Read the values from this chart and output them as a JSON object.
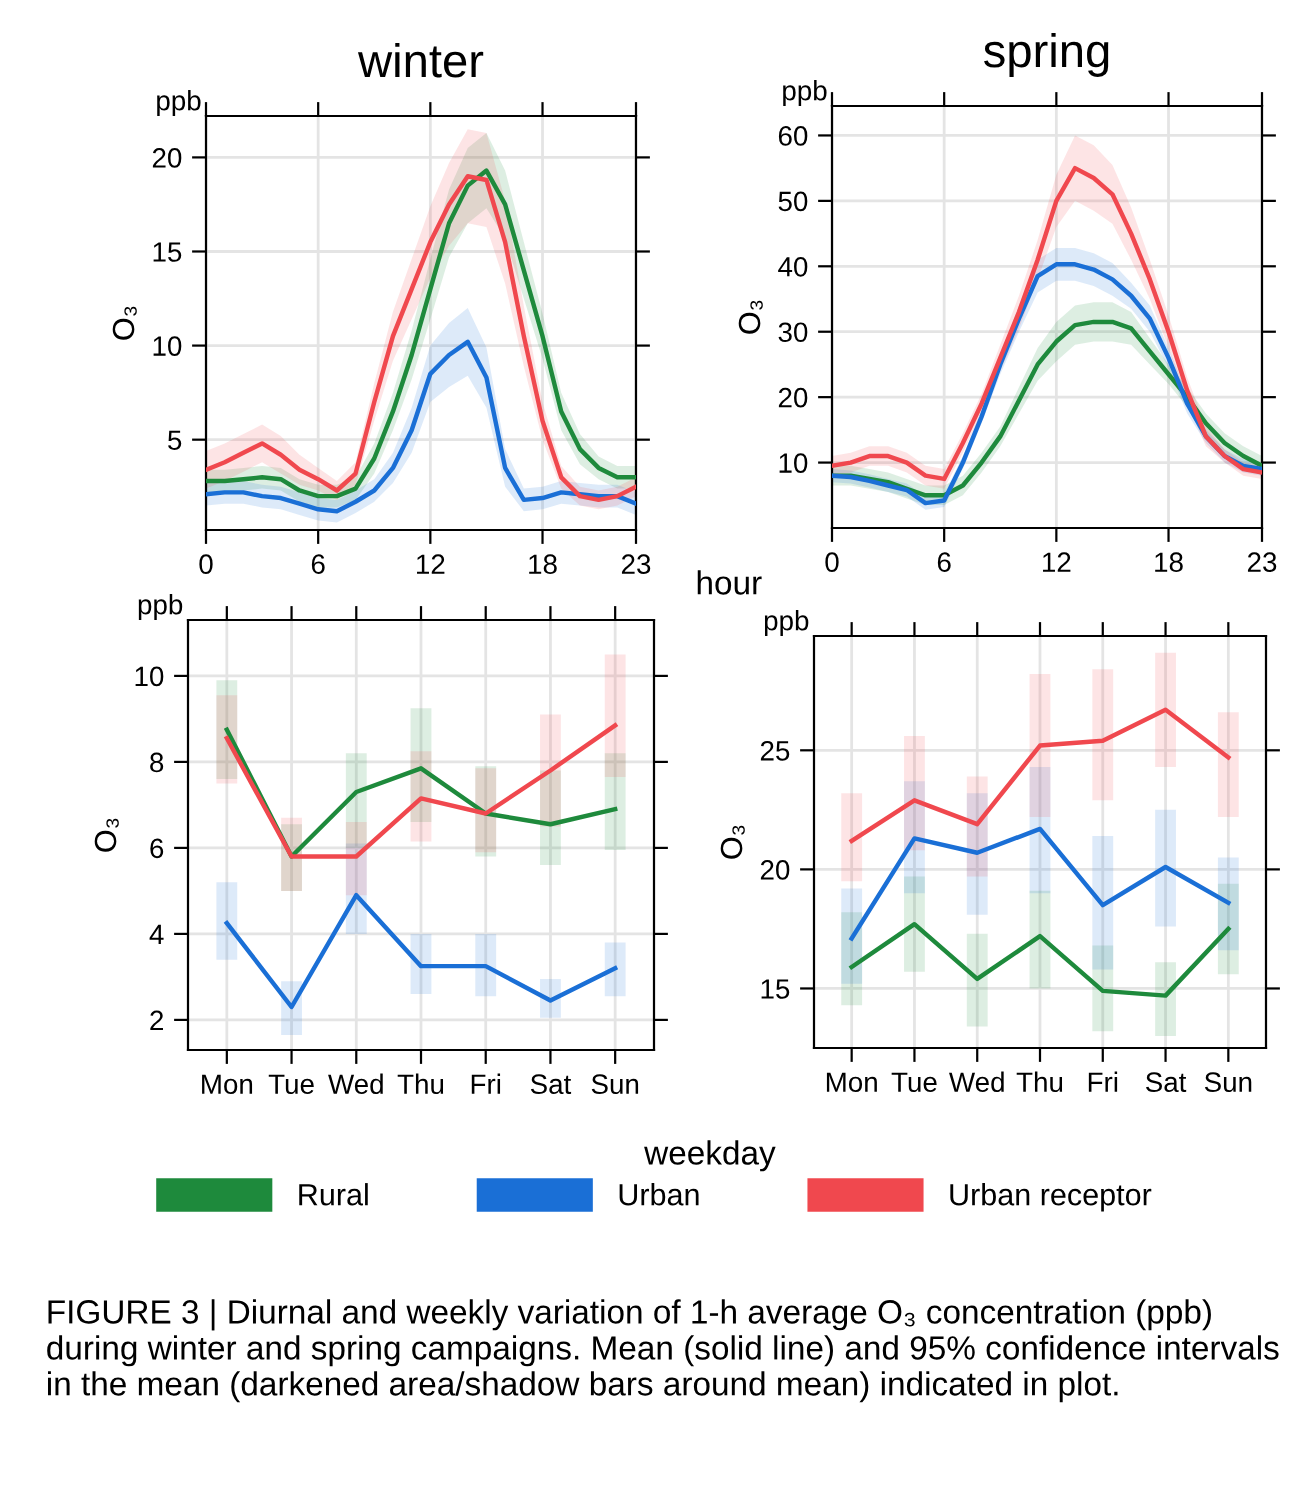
{
  "chart_data": [
    {
      "type": "line",
      "title": "winter",
      "legend": "bottom",
      "ylabel": "O₃",
      "annotations": [
        "ppb"
      ],
      "x": [
        0,
        1,
        2,
        3,
        4,
        5,
        6,
        7,
        8,
        9,
        10,
        11,
        12,
        13,
        14,
        15,
        16,
        17,
        18,
        19,
        20,
        21,
        22,
        23
      ],
      "xlim": [
        0,
        23
      ],
      "xticks": [
        0,
        6,
        12,
        18,
        23
      ],
      "ylim": [
        0.2,
        22.2
      ],
      "yticks": [
        5,
        10,
        15,
        20
      ],
      "grid": true,
      "series": [
        {
          "name": "Rural",
          "color": "#1e8a3c",
          "values": [
            2.8,
            2.8,
            2.9,
            3.0,
            2.9,
            2.3,
            2.0,
            2.0,
            2.4,
            4.0,
            6.5,
            9.5,
            13.0,
            16.5,
            18.5,
            19.3,
            17.5,
            14.0,
            10.5,
            6.5,
            4.5,
            3.5,
            3.0,
            3.0
          ],
          "lower": [
            2.2,
            2.2,
            2.3,
            2.4,
            2.3,
            1.7,
            1.4,
            1.4,
            1.8,
            3.2,
            5.5,
            8.2,
            11.4,
            14.7,
            16.5,
            17.3,
            15.7,
            12.5,
            9.3,
            5.5,
            3.7,
            2.9,
            2.4,
            2.4
          ],
          "upper": [
            3.4,
            3.4,
            3.5,
            3.6,
            3.5,
            2.9,
            2.6,
            2.6,
            3.0,
            4.8,
            7.5,
            10.8,
            14.6,
            18.3,
            20.5,
            21.3,
            19.3,
            15.5,
            11.7,
            7.5,
            5.3,
            4.1,
            3.6,
            3.6
          ]
        },
        {
          "name": "Urban",
          "color": "#1a6fd6",
          "values": [
            2.1,
            2.2,
            2.2,
            2.0,
            1.9,
            1.6,
            1.3,
            1.2,
            1.7,
            2.3,
            3.5,
            5.5,
            8.5,
            9.5,
            10.2,
            8.3,
            3.5,
            1.8,
            1.9,
            2.2,
            2.1,
            2.0,
            2.0,
            1.6
          ],
          "lower": [
            1.5,
            1.6,
            1.6,
            1.4,
            1.3,
            1.0,
            0.7,
            0.6,
            1.1,
            1.7,
            2.7,
            4.3,
            7.0,
            7.8,
            8.4,
            6.7,
            2.5,
            1.2,
            1.3,
            1.6,
            1.5,
            1.4,
            1.4,
            1.0
          ],
          "upper": [
            2.7,
            2.8,
            2.8,
            2.6,
            2.5,
            2.2,
            1.9,
            1.8,
            2.3,
            2.9,
            4.3,
            6.7,
            10.0,
            11.2,
            12.0,
            9.9,
            4.5,
            2.4,
            2.5,
            2.8,
            2.7,
            2.6,
            2.6,
            2.2
          ]
        },
        {
          "name": "Urban receptor",
          "color": "#f0484e",
          "values": [
            3.4,
            3.8,
            4.3,
            4.8,
            4.2,
            3.4,
            2.9,
            2.3,
            3.2,
            7.0,
            10.5,
            13.0,
            15.5,
            17.5,
            19.0,
            18.8,
            15.5,
            10.5,
            6.0,
            3.0,
            2.0,
            1.8,
            2.0,
            2.5
          ],
          "lower": [
            2.4,
            2.8,
            3.3,
            3.8,
            3.2,
            2.6,
            2.3,
            1.8,
            2.6,
            6.0,
            9.2,
            11.4,
            13.6,
            15.3,
            16.5,
            16.3,
            13.3,
            8.9,
            5.0,
            2.4,
            1.5,
            1.3,
            1.5,
            2.0
          ],
          "upper": [
            4.4,
            4.8,
            5.3,
            5.8,
            5.2,
            4.2,
            3.5,
            2.8,
            3.8,
            8.0,
            11.8,
            14.6,
            17.4,
            19.7,
            21.5,
            21.3,
            17.7,
            12.1,
            7.0,
            3.6,
            2.5,
            2.3,
            2.5,
            3.0
          ]
        }
      ]
    },
    {
      "type": "line",
      "title": "spring",
      "ylabel": "O₃",
      "xlabel": "hour",
      "annotations": [
        "ppb"
      ],
      "x": [
        0,
        1,
        2,
        3,
        4,
        5,
        6,
        7,
        8,
        9,
        10,
        11,
        12,
        13,
        14,
        15,
        16,
        17,
        18,
        19,
        20,
        21,
        22,
        23
      ],
      "xlim": [
        0,
        23
      ],
      "xticks": [
        0,
        6,
        12,
        18,
        23
      ],
      "ylim": [
        0,
        64.5
      ],
      "yticks": [
        10,
        20,
        30,
        40,
        50,
        60
      ],
      "grid": true,
      "series": [
        {
          "color": "#1e8a3c",
          "values": [
            8,
            8,
            7.5,
            7,
            6,
            5,
            5,
            6.5,
            10,
            14,
            19.5,
            25,
            28.5,
            31,
            31.5,
            31.5,
            30.5,
            27,
            23.5,
            20,
            16,
            13,
            11,
            9.5
          ],
          "lower": [
            6.5,
            6.5,
            6,
            5.5,
            4.5,
            3.5,
            3.5,
            5,
            8.5,
            12.5,
            17.5,
            22.5,
            25.5,
            28,
            28.5,
            28.5,
            28,
            25,
            22,
            18.5,
            14.5,
            11.5,
            9.5,
            8
          ],
          "upper": [
            9.5,
            9.5,
            9,
            8.5,
            7.5,
            6.5,
            6.5,
            8,
            11.5,
            15.5,
            21.5,
            27.5,
            31.5,
            34,
            34.5,
            34.5,
            33,
            29,
            25,
            21.5,
            17.5,
            14.5,
            12.5,
            11
          ]
        },
        {
          "color": "#1a6fd6",
          "values": [
            8,
            7.8,
            7.2,
            6.5,
            5.8,
            3.8,
            4.2,
            10,
            17,
            25,
            32,
            38.5,
            40.3,
            40.3,
            39.5,
            38,
            35.5,
            32,
            26,
            19,
            14,
            11,
            9.5,
            9
          ],
          "lower": [
            7,
            6.8,
            6.2,
            5.5,
            4.8,
            2.8,
            3.2,
            9,
            16,
            23.5,
            30,
            36,
            37.8,
            37.8,
            37,
            35.5,
            33.5,
            30,
            24.5,
            17.5,
            13,
            10,
            8.5,
            8
          ],
          "upper": [
            9,
            8.8,
            8.2,
            7.5,
            6.8,
            4.8,
            5.2,
            11,
            18,
            26.5,
            34,
            41,
            42.8,
            42.8,
            42,
            40.5,
            37.5,
            34,
            27.5,
            20.5,
            15,
            12,
            10.5,
            10
          ]
        },
        {
          "color": "#f0484e",
          "values": [
            9.5,
            10,
            11,
            11,
            10,
            8,
            7.5,
            13,
            19,
            26,
            33,
            41,
            50,
            55,
            53.5,
            51,
            45,
            38,
            30,
            21,
            14,
            11,
            9,
            8.5
          ],
          "lower": [
            8,
            8.5,
            9.5,
            9.5,
            8.5,
            6.5,
            6,
            11.5,
            17.5,
            24,
            30.5,
            38,
            46,
            50,
            48.5,
            46.5,
            41,
            35,
            27.5,
            19,
            12.5,
            10,
            8,
            7.5
          ],
          "upper": [
            11,
            11.5,
            12.5,
            12.5,
            11.5,
            9.5,
            9,
            14.5,
            20.5,
            28,
            35.5,
            44,
            54,
            60,
            58.5,
            55.5,
            49,
            41,
            32.5,
            23,
            15.5,
            12,
            10,
            9.5
          ]
        }
      ]
    },
    {
      "type": "line",
      "ylabel": "O₃",
      "xlabel": "weekday",
      "annotations": [
        "ppb"
      ],
      "categories": [
        "Mon",
        "Tue",
        "Wed",
        "Thu",
        "Fri",
        "Sat",
        "Sun"
      ],
      "ylim": [
        1.3,
        11.3
      ],
      "yticks": [
        2,
        4,
        6,
        8,
        10
      ],
      "grid": true,
      "series": [
        {
          "color": "#1e8a3c",
          "values": [
            8.75,
            5.8,
            7.3,
            7.85,
            6.8,
            6.55,
            6.9
          ],
          "errors": [
            [
              7.6,
              9.9
            ],
            [
              5.0,
              6.55
            ],
            [
              6.0,
              8.2
            ],
            [
              6.6,
              9.25
            ],
            [
              5.8,
              7.9
            ],
            [
              5.6,
              7.8
            ],
            [
              5.95,
              8.2
            ]
          ]
        },
        {
          "color": "#1a6fd6",
          "values": [
            4.25,
            2.3,
            4.9,
            3.25,
            3.25,
            2.45,
            3.2
          ],
          "errors": [
            [
              3.4,
              5.2
            ],
            [
              1.65,
              2.9
            ],
            [
              4.0,
              6.1
            ],
            [
              2.6,
              4.0
            ],
            [
              2.55,
              4.0
            ],
            [
              2.05,
              2.95
            ],
            [
              2.55,
              3.8
            ]
          ]
        },
        {
          "color": "#f0484e",
          "values": [
            8.55,
            5.8,
            5.8,
            7.15,
            6.8,
            7.8,
            8.85
          ],
          "errors": [
            [
              7.5,
              9.55
            ],
            [
              5.0,
              6.7
            ],
            [
              4.9,
              6.6
            ],
            [
              6.15,
              8.25
            ],
            [
              5.9,
              7.85
            ],
            [
              6.5,
              9.1
            ],
            [
              7.65,
              10.5
            ]
          ]
        }
      ]
    },
    {
      "type": "line",
      "ylabel": "O₃",
      "annotations": [
        "ppb",
        "FIGURE 3 | Diurnal and weekly variation of 1-h average O₃ concentration (ppb) during winter and spring campaigns. Mean (solid line) and 95% confidence intervals in the mean (darkened area/shadow bars around mean) indicated in plot."
      ],
      "categories": [
        "Mon",
        "Tue",
        "Wed",
        "Thu",
        "Fri",
        "Sat",
        "Sun"
      ],
      "ylim": [
        12.5,
        29.8
      ],
      "yticks": [
        15,
        20,
        25
      ],
      "grid": true,
      "series": [
        {
          "color": "#1e8a3c",
          "values": [
            15.9,
            17.7,
            15.4,
            17.2,
            14.9,
            14.7,
            17.5
          ],
          "errors": [
            [
              14.3,
              18.2
            ],
            [
              15.7,
              19.7
            ],
            [
              13.4,
              17.3
            ],
            [
              15.0,
              19.1
            ],
            [
              13.2,
              16.8
            ],
            [
              13.0,
              16.1
            ],
            [
              15.6,
              19.4
            ]
          ]
        },
        {
          "color": "#1a6fd6",
          "values": [
            17.1,
            21.3,
            20.7,
            21.7,
            18.5,
            20.1,
            18.6
          ],
          "errors": [
            [
              15.2,
              19.2
            ],
            [
              19.0,
              23.7
            ],
            [
              18.1,
              23.2
            ],
            [
              19.0,
              24.3
            ],
            [
              15.8,
              21.4
            ],
            [
              17.6,
              22.5
            ],
            [
              16.6,
              20.5
            ]
          ]
        },
        {
          "color": "#f0484e",
          "values": [
            21.2,
            22.9,
            21.9,
            25.2,
            25.4,
            26.7,
            24.7
          ],
          "errors": [
            [
              19.5,
              23.2
            ],
            [
              20.8,
              25.6
            ],
            [
              19.7,
              23.9
            ],
            [
              22.2,
              28.2
            ],
            [
              22.9,
              28.4
            ],
            [
              24.3,
              29.1
            ],
            [
              22.2,
              26.6
            ]
          ]
        }
      ]
    }
  ]
}
